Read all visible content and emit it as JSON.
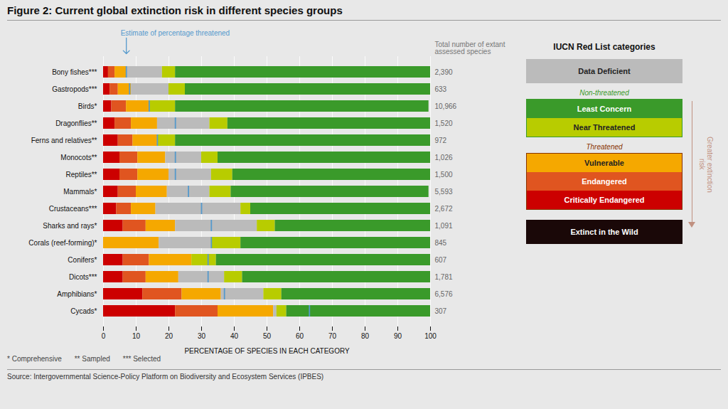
{
  "chart_data": {
    "type": "bar",
    "orientation": "horizontal",
    "stacked": true,
    "title": "Figure 2: Current global extinction risk in different species groups",
    "xlabel": "PERCENTAGE OF SPECIES IN EACH CATEGORY",
    "source": "Source: Intergovernmental Science-Policy Platform on Biodiversity and Ecosystem Services (IPBES)",
    "footnotes": [
      "* Comprehensive",
      "** Sampled",
      "*** Selected"
    ],
    "background_color": "#e8e8e8",
    "categories": [
      "Bony fishes***",
      "Gastropods***",
      "Birds*",
      "Dragonflies**",
      "Ferns and relatives**",
      "Monocots**",
      "Reptiles**",
      "Mammals*",
      "Crustaceans***",
      "Sharks and rays*",
      "Corals (reef-forming)*",
      "Conifers*",
      "Dicots***",
      "Amphibians*",
      "Cycads*"
    ],
    "series": [
      {
        "name": "Critically Endangered",
        "color": "#cc0000",
        "values": [
          1.5,
          2.0,
          2.5,
          3.5,
          4.5,
          5.0,
          5.0,
          4.5,
          4.0,
          6.0,
          0.0,
          6.0,
          6.0,
          12.0,
          22.0
        ]
      },
      {
        "name": "Endangered",
        "color": "#e05520",
        "values": [
          2.0,
          2.5,
          4.5,
          5.0,
          4.5,
          5.5,
          5.5,
          5.5,
          4.5,
          7.0,
          0.0,
          8.0,
          7.0,
          12.0,
          13.0
        ]
      },
      {
        "name": "Vulnerable",
        "color": "#f5a800",
        "values": [
          3.5,
          4.0,
          7.0,
          8.0,
          7.5,
          8.5,
          9.5,
          9.5,
          7.5,
          9.0,
          17.0,
          13.0,
          10.0,
          12.0,
          17.0
        ]
      },
      {
        "name": "Data Deficient",
        "color": "#bbbbbb",
        "values": [
          11.0,
          11.5,
          0.0,
          16.0,
          0.0,
          11.0,
          13.0,
          13.0,
          26.0,
          25.0,
          16.0,
          0.0,
          14.0,
          13.0,
          1.0
        ]
      },
      {
        "name": "Near Threatened",
        "color": "#b8cc00",
        "values": [
          4.0,
          5.0,
          8.0,
          5.5,
          5.5,
          5.0,
          6.5,
          6.5,
          3.0,
          5.5,
          9.0,
          7.5,
          5.5,
          5.5,
          3.0
        ]
      },
      {
        "name": "Least Concern",
        "color": "#3a9a2a",
        "values": [
          78.0,
          75.0,
          77.5,
          62.0,
          78.0,
          65.0,
          60.5,
          60.5,
          55.0,
          47.5,
          58.0,
          65.5,
          57.5,
          45.5,
          44.0
        ]
      },
      {
        "name": "Estimate of percentage threatened",
        "type": "tick",
        "color": "#5599cc",
        "values": [
          7.0,
          8.0,
          14.0,
          22.0,
          16.5,
          22.0,
          22.0,
          26.0,
          30.0,
          33.0,
          33.0,
          32.0,
          32.0,
          37.0,
          63.0
        ]
      }
    ],
    "xlim": [
      0,
      100
    ],
    "xticks": [
      0,
      10,
      20,
      30,
      40,
      50,
      60,
      70,
      80,
      90,
      100
    ],
    "grid": true,
    "totals": {
      "label": "Total number of extant\nassessed species",
      "labels": [
        "2,390",
        "633",
        "10,966",
        "1,520",
        "972",
        "1,026",
        "1,500",
        "5,593",
        "2,672",
        "1,091",
        "845",
        "607",
        "1,781",
        "6,576",
        "307"
      ]
    },
    "legend": "right",
    "legend_title": "IUCN Red List categories",
    "legend_items": [
      {
        "name": "Data Deficient"
      },
      {
        "group": "Non-threatened",
        "color": "#3a9a2a",
        "members": [
          "Least Concern",
          "Near Threatened"
        ]
      },
      {
        "group": "Threatened",
        "color": "#883300",
        "members": [
          "Vulnerable",
          "Endangered",
          "Critically Endangered"
        ]
      },
      {
        "name": "Extinct in the Wild",
        "color": "#1a0808"
      }
    ],
    "risk_arrow": {
      "text": "Greater extinction\nrisk",
      "color": "#c09080"
    }
  }
}
